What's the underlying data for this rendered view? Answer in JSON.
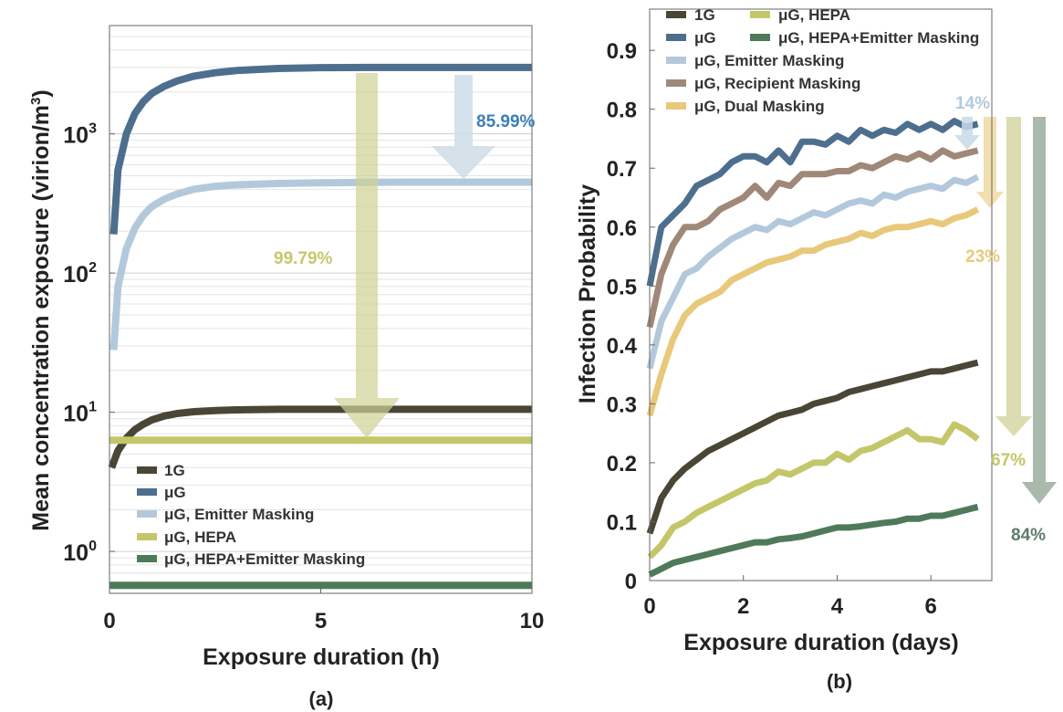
{
  "chart_data": [
    {
      "panel_label": "(a)",
      "type": "line",
      "xlabel": "Exposure duration (h)",
      "ylabel": "Mean concentration exposure (virion/m",
      "ylabel_sup": "3",
      "ylabel_end": ")",
      "yscale": "log",
      "xlim": [
        0,
        10
      ],
      "ylim": [
        0.5,
        6000
      ],
      "xticks": [
        0,
        5,
        10
      ],
      "xtick_labels": [
        "0",
        "5",
        "10"
      ],
      "yticks": [
        1,
        10,
        100,
        1000
      ],
      "ytick_bases": [
        "10",
        "10",
        "10",
        "10"
      ],
      "ytick_exps": [
        "0",
        "1",
        "2",
        "3"
      ],
      "grid": "minor horizontal",
      "legend_position": "lower-left",
      "legend": [
        "1G",
        "μG",
        "μG, Emitter Masking",
        "μG, HEPA",
        "μG, HEPA+Emitter Masking"
      ],
      "series": [
        {
          "name": "1G",
          "color": "#4a4636",
          "x": [
            0.05,
            0.2,
            0.4,
            0.6,
            0.8,
            1,
            1.3,
            1.6,
            2,
            2.5,
            3,
            4,
            5,
            6,
            7,
            8,
            9,
            10
          ],
          "y": [
            4,
            5.3,
            6.5,
            7.5,
            8.2,
            8.8,
            9.4,
            9.8,
            10.1,
            10.3,
            10.4,
            10.5,
            10.5,
            10.5,
            10.5,
            10.5,
            10.5,
            10.5
          ]
        },
        {
          "name": "μG",
          "color": "#4e6e8e",
          "x": [
            0.1,
            0.2,
            0.4,
            0.6,
            0.8,
            1,
            1.3,
            1.6,
            2,
            2.5,
            3,
            4,
            5,
            6,
            7,
            8,
            9,
            10
          ],
          "y": [
            190,
            550,
            1000,
            1400,
            1700,
            1950,
            2200,
            2400,
            2600,
            2750,
            2850,
            2950,
            2990,
            3000,
            3000,
            3000,
            3000,
            3000
          ]
        },
        {
          "name": "μG, Emitter Masking",
          "color": "#b3c9db",
          "x": [
            0.1,
            0.2,
            0.4,
            0.6,
            0.8,
            1,
            1.3,
            1.6,
            2,
            2.5,
            3,
            4,
            5,
            6,
            7,
            8,
            9,
            10
          ],
          "y": [
            28,
            80,
            150,
            210,
            260,
            300,
            340,
            370,
            400,
            420,
            430,
            440,
            445,
            448,
            450,
            450,
            450,
            450
          ]
        },
        {
          "name": "μG, HEPA",
          "color": "#c4c66a",
          "x": [
            0,
            10
          ],
          "y": [
            6.3,
            6.3
          ]
        },
        {
          "name": "μG, HEPA+Emitter Masking",
          "color": "#4f7a59",
          "x": [
            0,
            10
          ],
          "y": [
            0.57,
            0.57
          ]
        }
      ],
      "annotations": [
        {
          "text": "85.99%",
          "color": "#3d7fb8"
        },
        {
          "text": "99.79%",
          "color": "#c8c86a"
        }
      ]
    },
    {
      "panel_label": "(b)",
      "type": "line",
      "xlabel": "Exposure duration (days)",
      "ylabel": "Infection Probability",
      "xlim": [
        0,
        7.3
      ],
      "ylim": [
        0,
        0.97
      ],
      "xticks": [
        0,
        2,
        4,
        6
      ],
      "xtick_labels": [
        "0",
        "2",
        "4",
        "6"
      ],
      "yticks": [
        0,
        0.1,
        0.2,
        0.3,
        0.4,
        0.5,
        0.6,
        0.7,
        0.8,
        0.9
      ],
      "ytick_labels": [
        "0",
        "0.1",
        "0.2",
        "0.3",
        "0.4",
        "0.5",
        "0.6",
        "0.7",
        "0.8",
        "0.9"
      ],
      "grid": "off",
      "legend_position": "top",
      "legend": [
        "1G",
        "μG, HEPA",
        "μG",
        "μG, HEPA+Emitter Masking",
        "μG, Emitter Masking",
        "μG, Recipient Masking",
        "μG, Dual Masking"
      ],
      "series": [
        {
          "name": "μG",
          "color": "#4e6e8e",
          "x": [
            0,
            0.25,
            0.5,
            0.75,
            1,
            1.25,
            1.5,
            1.75,
            2,
            2.25,
            2.5,
            2.75,
            3,
            3.25,
            3.5,
            3.75,
            4,
            4.25,
            4.5,
            4.75,
            5,
            5.25,
            5.5,
            5.75,
            6,
            6.25,
            6.5,
            6.75,
            7
          ],
          "y": [
            0.5,
            0.6,
            0.62,
            0.64,
            0.67,
            0.68,
            0.69,
            0.71,
            0.72,
            0.72,
            0.71,
            0.73,
            0.71,
            0.745,
            0.745,
            0.74,
            0.755,
            0.745,
            0.765,
            0.755,
            0.765,
            0.76,
            0.775,
            0.765,
            0.775,
            0.765,
            0.78,
            0.77,
            0.775
          ]
        },
        {
          "name": "μG, Recipient Masking",
          "color": "#a08878",
          "x": [
            0,
            0.25,
            0.5,
            0.75,
            1,
            1.25,
            1.5,
            1.75,
            2,
            2.25,
            2.5,
            2.75,
            3,
            3.25,
            3.5,
            3.75,
            4,
            4.25,
            4.5,
            4.75,
            5,
            5.25,
            5.5,
            5.75,
            6,
            6.25,
            6.5,
            6.75,
            7
          ],
          "y": [
            0.43,
            0.52,
            0.57,
            0.6,
            0.6,
            0.61,
            0.63,
            0.64,
            0.65,
            0.67,
            0.65,
            0.675,
            0.67,
            0.69,
            0.69,
            0.69,
            0.695,
            0.695,
            0.705,
            0.7,
            0.71,
            0.72,
            0.715,
            0.725,
            0.715,
            0.73,
            0.72,
            0.725,
            0.73
          ]
        },
        {
          "name": "μG, Emitter Masking",
          "color": "#b3c9db",
          "x": [
            0,
            0.25,
            0.5,
            0.75,
            1,
            1.25,
            1.5,
            1.75,
            2,
            2.25,
            2.5,
            2.75,
            3,
            3.25,
            3.5,
            3.75,
            4,
            4.25,
            4.5,
            4.75,
            5,
            5.25,
            5.5,
            5.75,
            6,
            6.25,
            6.5,
            6.75,
            7
          ],
          "y": [
            0.36,
            0.44,
            0.48,
            0.52,
            0.53,
            0.55,
            0.565,
            0.58,
            0.59,
            0.6,
            0.595,
            0.61,
            0.605,
            0.615,
            0.625,
            0.62,
            0.63,
            0.64,
            0.645,
            0.64,
            0.655,
            0.65,
            0.66,
            0.665,
            0.67,
            0.665,
            0.68,
            0.675,
            0.685
          ]
        },
        {
          "name": "μG, Dual Masking",
          "color": "#e8c97a",
          "x": [
            0,
            0.25,
            0.5,
            0.75,
            1,
            1.25,
            1.5,
            1.75,
            2,
            2.25,
            2.5,
            2.75,
            3,
            3.25,
            3.5,
            3.75,
            4,
            4.25,
            4.5,
            4.75,
            5,
            5.25,
            5.5,
            5.75,
            6,
            6.25,
            6.5,
            6.75,
            7
          ],
          "y": [
            0.28,
            0.35,
            0.41,
            0.45,
            0.47,
            0.48,
            0.49,
            0.51,
            0.52,
            0.53,
            0.54,
            0.545,
            0.55,
            0.56,
            0.56,
            0.57,
            0.575,
            0.58,
            0.59,
            0.585,
            0.595,
            0.6,
            0.6,
            0.605,
            0.61,
            0.605,
            0.615,
            0.62,
            0.63
          ]
        },
        {
          "name": "1G",
          "color": "#4a4636",
          "x": [
            0,
            0.25,
            0.5,
            0.75,
            1,
            1.25,
            1.5,
            1.75,
            2,
            2.25,
            2.5,
            2.75,
            3,
            3.25,
            3.5,
            3.75,
            4,
            4.25,
            4.5,
            4.75,
            5,
            5.25,
            5.5,
            5.75,
            6,
            6.25,
            6.5,
            6.75,
            7
          ],
          "y": [
            0.08,
            0.14,
            0.17,
            0.19,
            0.205,
            0.22,
            0.23,
            0.24,
            0.25,
            0.26,
            0.27,
            0.28,
            0.285,
            0.29,
            0.3,
            0.305,
            0.31,
            0.32,
            0.325,
            0.33,
            0.335,
            0.34,
            0.345,
            0.35,
            0.355,
            0.355,
            0.36,
            0.365,
            0.37
          ]
        },
        {
          "name": "μG, HEPA",
          "color": "#c4c66a",
          "x": [
            0,
            0.25,
            0.5,
            0.75,
            1,
            1.25,
            1.5,
            1.75,
            2,
            2.25,
            2.5,
            2.75,
            3,
            3.25,
            3.5,
            3.75,
            4,
            4.25,
            4.5,
            4.75,
            5,
            5.25,
            5.5,
            5.75,
            6,
            6.25,
            6.5,
            6.75,
            7
          ],
          "y": [
            0.04,
            0.06,
            0.09,
            0.1,
            0.115,
            0.125,
            0.135,
            0.145,
            0.155,
            0.165,
            0.17,
            0.185,
            0.18,
            0.19,
            0.2,
            0.2,
            0.215,
            0.205,
            0.22,
            0.225,
            0.235,
            0.245,
            0.255,
            0.24,
            0.24,
            0.235,
            0.265,
            0.255,
            0.24
          ]
        },
        {
          "name": "μG, HEPA+Emitter Masking",
          "color": "#4f7a59",
          "x": [
            0,
            0.25,
            0.5,
            0.75,
            1,
            1.25,
            1.5,
            1.75,
            2,
            2.25,
            2.5,
            2.75,
            3,
            3.25,
            3.5,
            3.75,
            4,
            4.25,
            4.5,
            4.75,
            5,
            5.25,
            5.5,
            5.75,
            6,
            6.25,
            6.5,
            6.75,
            7
          ],
          "y": [
            0.01,
            0.02,
            0.03,
            0.035,
            0.04,
            0.045,
            0.05,
            0.055,
            0.06,
            0.065,
            0.065,
            0.07,
            0.072,
            0.075,
            0.08,
            0.085,
            0.09,
            0.09,
            0.092,
            0.095,
            0.098,
            0.1,
            0.105,
            0.105,
            0.11,
            0.11,
            0.115,
            0.12,
            0.125
          ]
        }
      ],
      "annotations": [
        {
          "text": "14%",
          "color": "#b3c9db"
        },
        {
          "text": "23%",
          "color": "#e8c97a"
        },
        {
          "text": "67%",
          "color": "#c4c66a"
        },
        {
          "text": "84%",
          "color": "#5e7d6a"
        }
      ]
    }
  ]
}
